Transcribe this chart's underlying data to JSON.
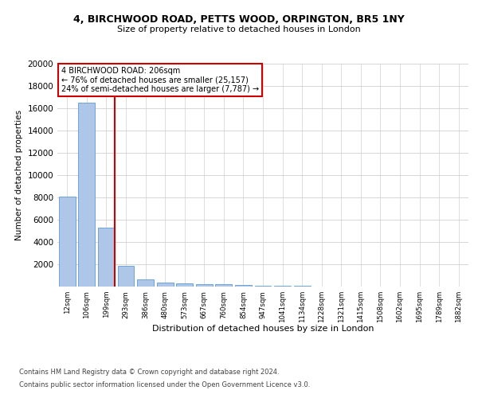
{
  "title_line1": "4, BIRCHWOOD ROAD, PETTS WOOD, ORPINGTON, BR5 1NY",
  "title_line2": "Size of property relative to detached houses in London",
  "xlabel": "Distribution of detached houses by size in London",
  "ylabel": "Number of detached properties",
  "bar_categories": [
    "12sqm",
    "106sqm",
    "199sqm",
    "293sqm",
    "386sqm",
    "480sqm",
    "573sqm",
    "667sqm",
    "760sqm",
    "854sqm",
    "947sqm",
    "1041sqm",
    "1134sqm",
    "1228sqm",
    "1321sqm",
    "1415sqm",
    "1508sqm",
    "1602sqm",
    "1695sqm",
    "1789sqm",
    "1882sqm"
  ],
  "bar_values": [
    8100,
    16500,
    5300,
    1850,
    650,
    350,
    280,
    220,
    180,
    130,
    90,
    60,
    40,
    25,
    18,
    12,
    8,
    6,
    4,
    3,
    2
  ],
  "bar_color": "#aec6e8",
  "bar_edge_color": "#5b9bd5",
  "marker_index": 2,
  "marker_color": "#cc0000",
  "annotation_text": "4 BIRCHWOOD ROAD: 206sqm\n← 76% of detached houses are smaller (25,157)\n24% of semi-detached houses are larger (7,787) →",
  "annotation_box_color": "#ffffff",
  "annotation_box_edge_color": "#cc0000",
  "ylim": [
    0,
    20000
  ],
  "yticks": [
    0,
    2000,
    4000,
    6000,
    8000,
    10000,
    12000,
    14000,
    16000,
    18000,
    20000
  ],
  "background_color": "#ffffff",
  "grid_color": "#d0d0d0",
  "footer_line1": "Contains HM Land Registry data © Crown copyright and database right 2024.",
  "footer_line2": "Contains public sector information licensed under the Open Government Licence v3.0."
}
